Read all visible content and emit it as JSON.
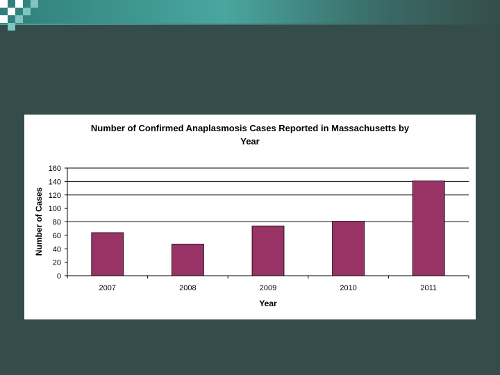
{
  "colors": {
    "background": "#344d4a",
    "bar": "#993366"
  },
  "chart_data": {
    "type": "bar",
    "title_lines": [
      "Number of Confirmed Anaplasmosis Cases Reported in Massachusetts by",
      "Year"
    ],
    "xlabel": "Year",
    "ylabel": "Number of Cases",
    "categories": [
      "2007",
      "2008",
      "2009",
      "2010",
      "2011"
    ],
    "values": [
      64,
      47,
      74,
      81,
      141
    ],
    "ylim": [
      0,
      160
    ],
    "yticks": [
      0,
      20,
      40,
      60,
      80,
      100,
      120,
      140,
      160
    ],
    "grid_lines": [
      80,
      120,
      140,
      160
    ],
    "legend": "none"
  }
}
